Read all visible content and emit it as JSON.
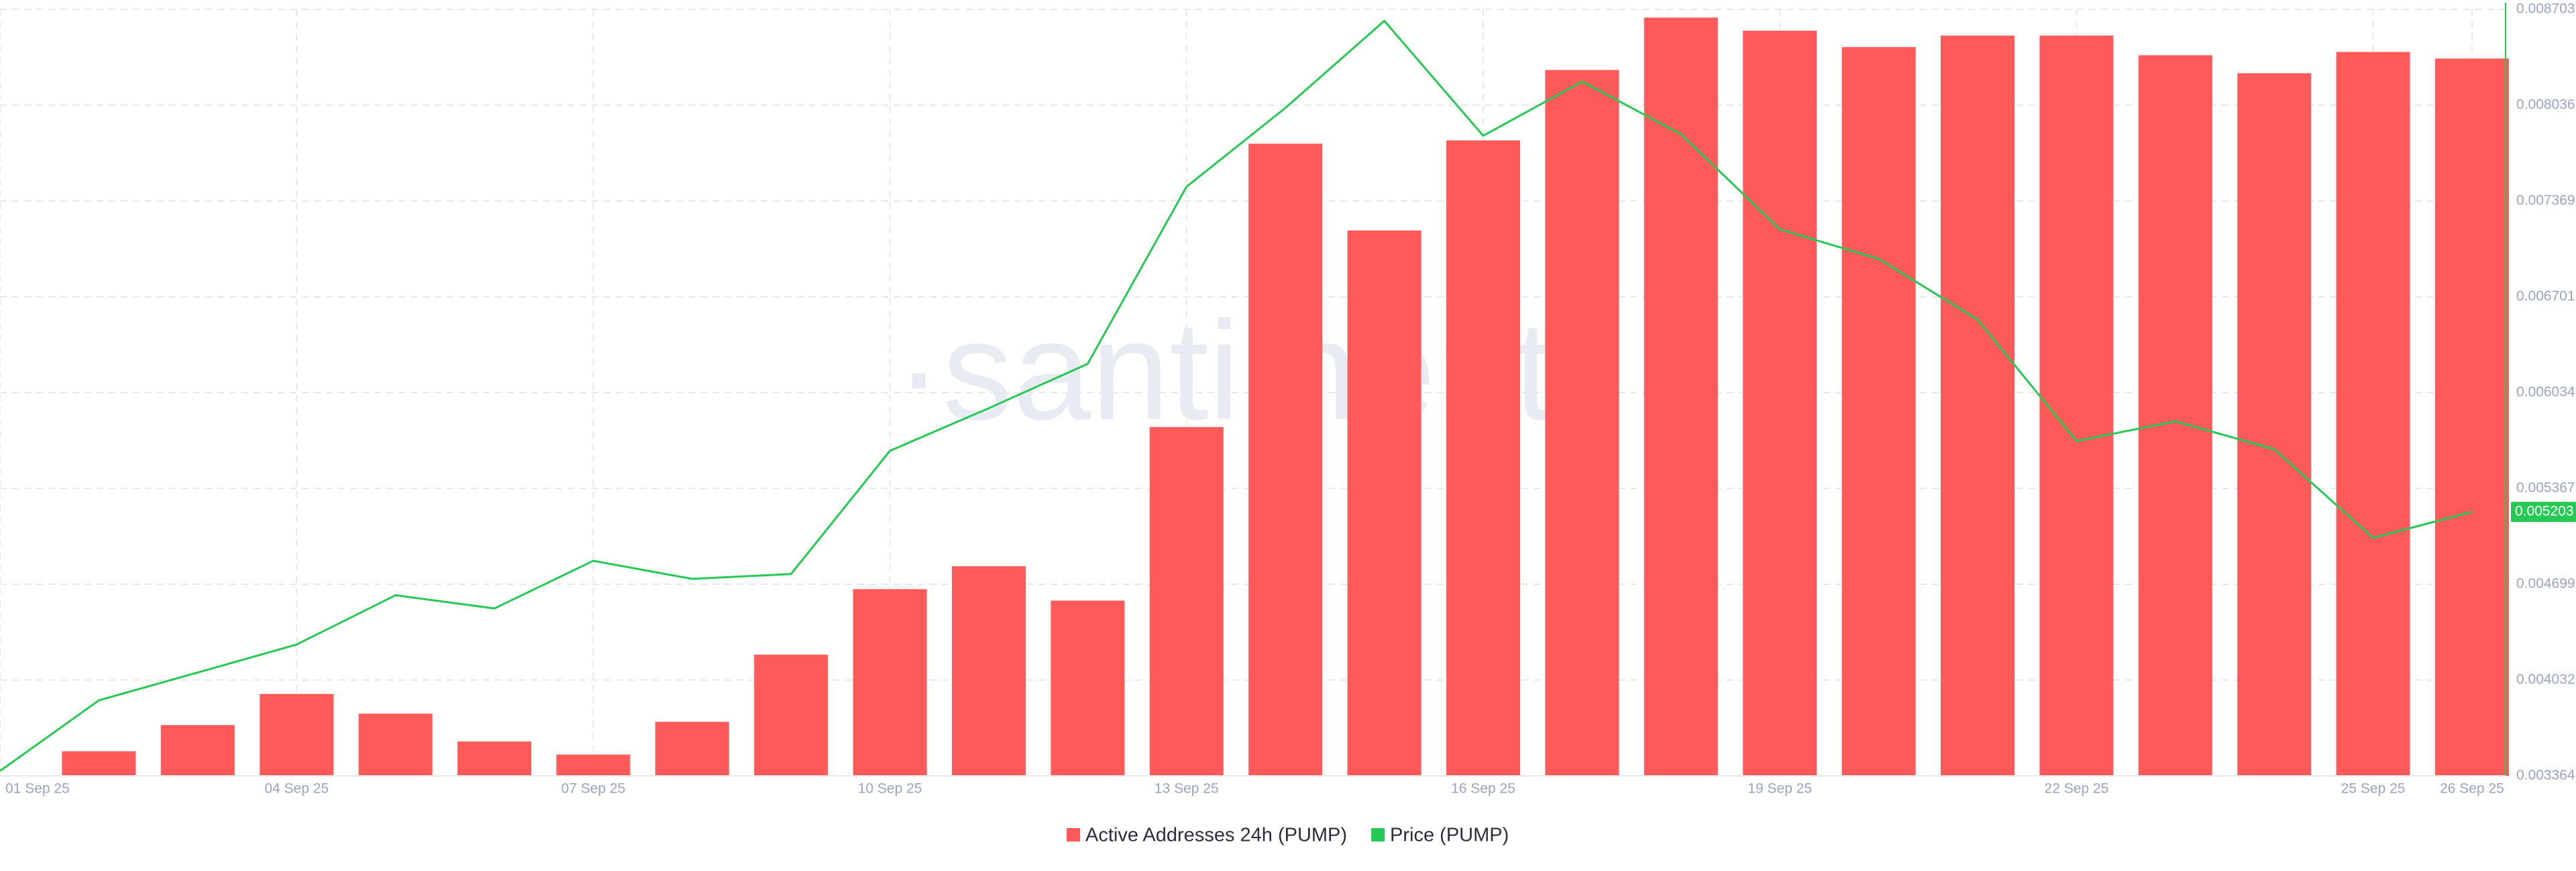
{
  "chart_data": {
    "type": "bar_line",
    "watermark": "·santiment·",
    "categories": [
      "01 Sep 25",
      null,
      null,
      "04 Sep 25",
      null,
      null,
      "07 Sep 25",
      null,
      null,
      "10 Sep 25",
      null,
      null,
      "13 Sep 25",
      null,
      null,
      "16 Sep 25",
      null,
      null,
      "19 Sep 25",
      null,
      null,
      "22 Sep 25",
      null,
      null,
      "25 Sep 25",
      "26 Sep 25"
    ],
    "series": [
      {
        "name": "Active Addresses 24h (PUMP)",
        "color": "#ff5a5a",
        "type": "bar",
        "values": [
          null,
          15,
          31,
          50,
          38,
          21,
          13,
          33,
          74,
          114,
          128,
          107,
          213,
          386,
          333,
          388,
          431,
          463,
          455,
          445,
          452,
          452,
          440,
          429,
          442,
          438
        ]
      },
      {
        "name": "Price (PUMP)",
        "color": "#26c953",
        "type": "line",
        "axis": "y2",
        "values": [
          0.003398,
          0.00389,
          0.004084,
          0.004279,
          0.004622,
          0.00453,
          0.004862,
          0.004736,
          0.00477,
          0.005628,
          0.005925,
          0.006234,
          0.007468,
          0.008017,
          0.008623,
          0.007823,
          0.0082,
          0.007834,
          0.007171,
          0.006965,
          0.006542,
          0.005696,
          0.005834,
          0.005639,
          0.005022,
          0.005203
        ]
      }
    ],
    "ylim": [
      0,
      468
    ],
    "y2lim": [
      0.003364,
      0.008703
    ],
    "y2ticks": [
      0.003364,
      0.004032,
      0.004699,
      0.005367,
      0.006034,
      0.006701,
      0.007369,
      0.008036,
      0.008703
    ],
    "grid": true
  }
}
